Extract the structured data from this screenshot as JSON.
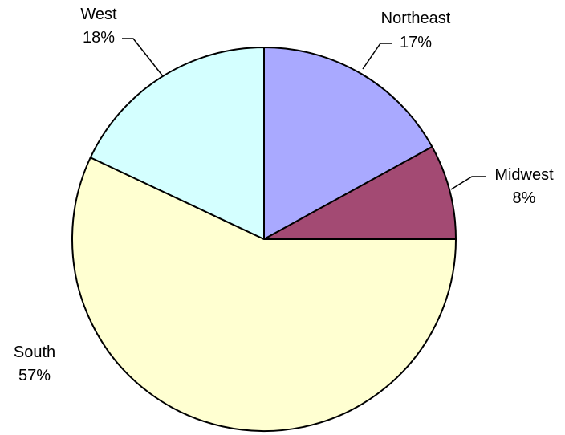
{
  "chart_data": {
    "type": "pie",
    "title": "",
    "start_angle_deg": 0,
    "direction": "clockwise",
    "slices": [
      {
        "label": "Northeast",
        "value": 17,
        "pct_label": "17%",
        "color": "#A9A9FF"
      },
      {
        "label": "Midwest",
        "value": 8,
        "pct_label": "8%",
        "color": "#A34A73"
      },
      {
        "label": "South",
        "value": 57,
        "pct_label": "57%",
        "color": "#FFFFD1"
      },
      {
        "label": "West",
        "value": 18,
        "pct_label": "18%",
        "color": "#D4FFFF"
      }
    ]
  }
}
